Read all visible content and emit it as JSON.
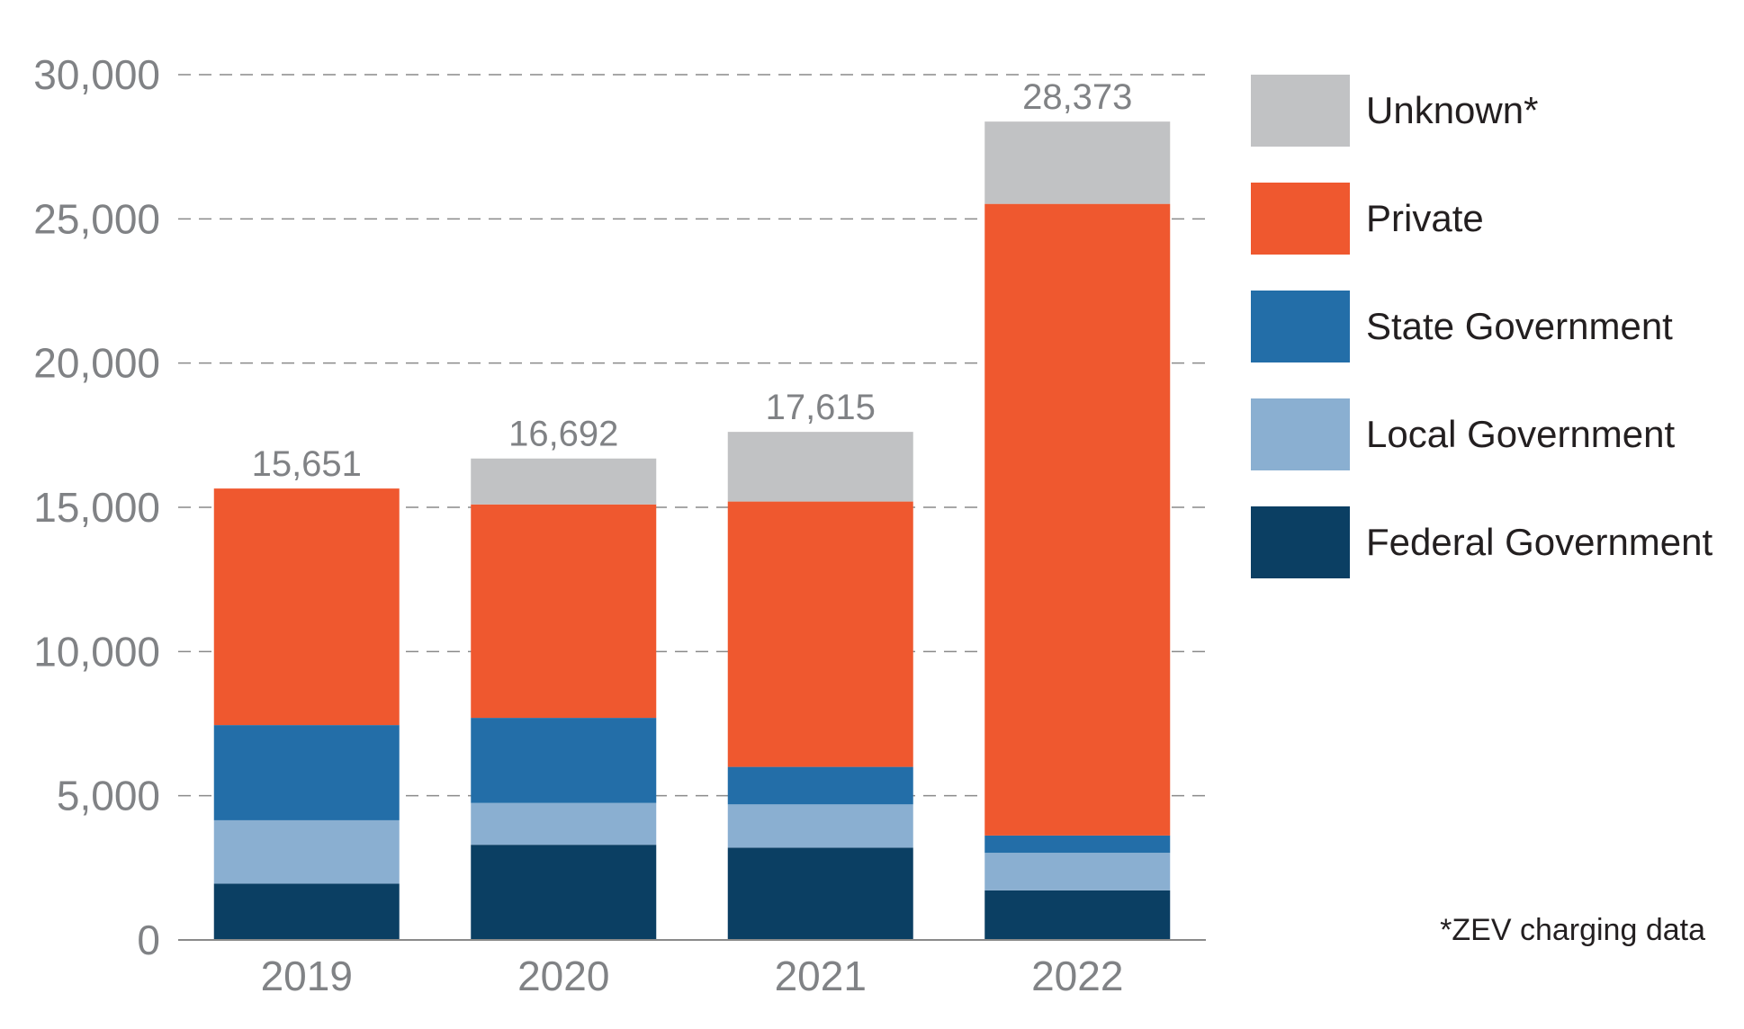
{
  "chart_data": {
    "type": "bar",
    "stacked": true,
    "categories": [
      "2019",
      "2020",
      "2021",
      "2022"
    ],
    "series": [
      {
        "name": "Federal Government",
        "color": "#0b3f63",
        "values": [
          1950,
          3300,
          3200,
          1720
        ]
      },
      {
        "name": "Local Government",
        "color": "#8aafd1",
        "values": [
          2200,
          1450,
          1500,
          1300
        ]
      },
      {
        "name": "State Government",
        "color": "#236ea8",
        "values": [
          3300,
          2950,
          1300,
          600
        ]
      },
      {
        "name": "Private",
        "color": "#ef582f",
        "values": [
          8201,
          7400,
          9200,
          21900
        ]
      },
      {
        "name": "Unknown*",
        "color": "#c1c2c4",
        "values": [
          0,
          1592,
          2415,
          2853
        ]
      }
    ],
    "totals": [
      "15,651",
      "16,692",
      "17,615",
      "28,373"
    ],
    "ylim": [
      0,
      30000
    ],
    "yticks": [
      "0",
      "5,000",
      "10,000",
      "15,000",
      "20,000",
      "25,000",
      "30,000"
    ],
    "grid": true,
    "legend_position": "right",
    "legend_order": [
      "Unknown*",
      "Private",
      "State Government",
      "Local Government",
      "Federal Government"
    ],
    "footnote": "*ZEV charging data",
    "title": "",
    "xlabel": "",
    "ylabel": ""
  }
}
